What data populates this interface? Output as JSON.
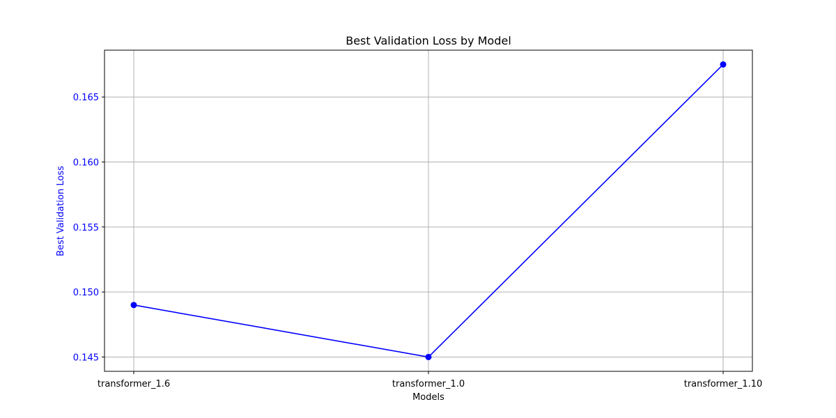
{
  "chart_data": {
    "type": "line",
    "title": "Best Validation Loss by Model",
    "xlabel": "Models",
    "ylabel": "Best Validation Loss",
    "categories": [
      "transformer_1.6",
      "transformer_1.0",
      "transformer_1.10"
    ],
    "series": [
      {
        "values": [
          0.149,
          0.145,
          0.1675
        ],
        "color": "#0000ff",
        "marker": "circle"
      }
    ],
    "ylim": [
      0.1439,
      0.1686
    ],
    "yticks": [
      0.145,
      0.15,
      0.155,
      0.16,
      0.165
    ],
    "ytick_labels": [
      "0.145",
      "0.150",
      "0.155",
      "0.160",
      "0.165"
    ],
    "grid": true,
    "ylabel_color": "#0000ff",
    "ytick_color": "#0000ff"
  }
}
